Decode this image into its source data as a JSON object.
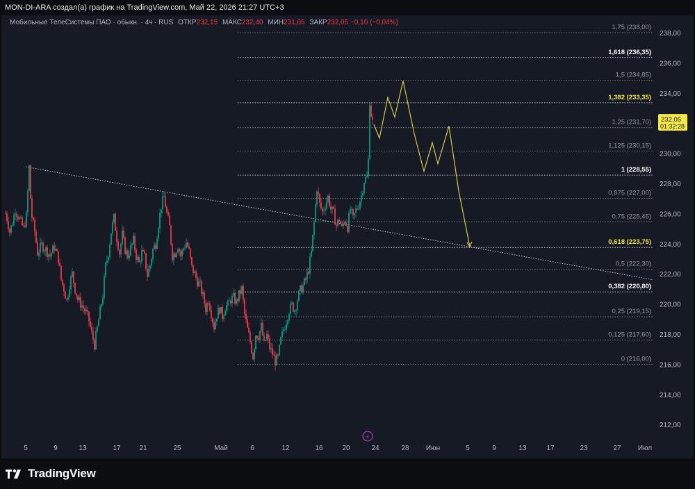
{
  "header": {
    "title": "MON-DI-ARA создал(а) график на TradingView.com, Май 22, 2026 21:27 UTC+3"
  },
  "legend": {
    "symbol": "Мобильные ТелеСистемы ПАО · обыкн. · 4ч · RUS",
    "open_label": "ОТКР",
    "open_value": "232,15",
    "high_label": "МАКС",
    "high_value": "232,40",
    "low_label": "МИН",
    "low_value": "231,65",
    "close_label": "ЗАКР",
    "close_value": "232,05",
    "change": "−0,10 (−0,04%)"
  },
  "price_badge": {
    "price": "232,05",
    "countdown": "01:32:28"
  },
  "brand": {
    "name": "TradingView"
  },
  "colors": {
    "background": "#161a25",
    "up": "#089981",
    "down": "#f23645",
    "fib_highlight": "#f5e94a",
    "projection": "#d6c94a"
  },
  "chart_data": {
    "type": "candlestick",
    "interval": "4h",
    "y_range": [
      211,
      239.5
    ],
    "y_ticks": [
      "238,00",
      "236,00",
      "234,00",
      "232,00",
      "230,00",
      "228,00",
      "226,00",
      "224,00",
      "222,00",
      "220,00",
      "218,00",
      "216,00",
      "214,00",
      "212,00"
    ],
    "y_tick_values": [
      238,
      236,
      234,
      232,
      230,
      228,
      226,
      224,
      222,
      220,
      218,
      216,
      214,
      212
    ],
    "x_labels": [
      "5",
      "9",
      "13",
      "17",
      "21",
      "25",
      "Май",
      "6",
      "12",
      "16",
      "20",
      "24",
      "28",
      "Июн",
      "5",
      "9",
      "13",
      "17",
      "23",
      "27",
      "Июл"
    ],
    "fib_levels": [
      {
        "ratio": "1,75",
        "price": 238.0,
        "label": "1,75 (238,00)",
        "emphasis": "normal"
      },
      {
        "ratio": "1,618",
        "price": 236.35,
        "label": "1,618 (236,35)",
        "emphasis": "white"
      },
      {
        "ratio": "1,5",
        "price": 234.85,
        "label": "1,5 (234,85)",
        "emphasis": "normal"
      },
      {
        "ratio": "1,382",
        "price": 233.35,
        "label": "1,382 (233,35)",
        "emphasis": "yellow"
      },
      {
        "ratio": "1,25",
        "price": 231.7,
        "label": "1,25 (231,70)",
        "emphasis": "normal"
      },
      {
        "ratio": "1,125",
        "price": 230.15,
        "label": "1,125 (230,15)",
        "emphasis": "normal"
      },
      {
        "ratio": "1",
        "price": 228.55,
        "label": "1 (228,55)",
        "emphasis": "white"
      },
      {
        "ratio": "0,875",
        "price": 227.0,
        "label": "0,875 (227,00)",
        "emphasis": "normal"
      },
      {
        "ratio": "0,75",
        "price": 225.45,
        "label": "0,75 (225,45)",
        "emphasis": "normal"
      },
      {
        "ratio": "0,618",
        "price": 223.75,
        "label": "0,618 (223,75)",
        "emphasis": "yellow"
      },
      {
        "ratio": "0,5",
        "price": 222.3,
        "label": "0,5 (222,30)",
        "emphasis": "normal"
      },
      {
        "ratio": "0,382",
        "price": 220.8,
        "label": "0,382 (220,80)",
        "emphasis": "white"
      },
      {
        "ratio": "0,25",
        "price": 219.15,
        "label": "0,25 (219,15)",
        "emphasis": "normal"
      },
      {
        "ratio": "0,125",
        "price": 217.6,
        "label": "0,125 (217,60)",
        "emphasis": "normal"
      },
      {
        "ratio": "0",
        "price": 216.0,
        "label": "0 (216,00)",
        "emphasis": "normal"
      }
    ],
    "price_path": [
      [
        0,
        226.0
      ],
      [
        3,
        225.5
      ],
      [
        6,
        224.8
      ],
      [
        10,
        225.4
      ],
      [
        14,
        226.3
      ],
      [
        20,
        225.6
      ],
      [
        26,
        225.0
      ],
      [
        30,
        225.8
      ],
      [
        34,
        229.1
      ],
      [
        37,
        226.0
      ],
      [
        42,
        224.8
      ],
      [
        46,
        223.4
      ],
      [
        52,
        223.9
      ],
      [
        58,
        223.6
      ],
      [
        64,
        223.2
      ],
      [
        70,
        223.8
      ],
      [
        76,
        223.0
      ],
      [
        80,
        221.6
      ],
      [
        84,
        221.0
      ],
      [
        88,
        220.2
      ],
      [
        92,
        221.3
      ],
      [
        96,
        222.0
      ],
      [
        100,
        221.0
      ],
      [
        104,
        220.3
      ],
      [
        110,
        219.9
      ],
      [
        116,
        219.4
      ],
      [
        120,
        218.9
      ],
      [
        124,
        218.0
      ],
      [
        128,
        217.3
      ],
      [
        132,
        218.4
      ],
      [
        136,
        219.5
      ],
      [
        140,
        220.6
      ],
      [
        144,
        222.5
      ],
      [
        148,
        223.4
      ],
      [
        152,
        224.8
      ],
      [
        156,
        225.7
      ],
      [
        160,
        224.4
      ],
      [
        164,
        223.4
      ],
      [
        168,
        224.6
      ],
      [
        172,
        223.6
      ],
      [
        176,
        223.2
      ],
      [
        180,
        223.7
      ],
      [
        184,
        224.2
      ],
      [
        188,
        223.2
      ],
      [
        192,
        222.7
      ],
      [
        196,
        223.4
      ],
      [
        200,
        223.1
      ],
      [
        204,
        221.9
      ],
      [
        208,
        222.6
      ],
      [
        212,
        223.6
      ],
      [
        216,
        224.0
      ],
      [
        220,
        225.3
      ],
      [
        224,
        226.5
      ],
      [
        228,
        227.1
      ],
      [
        232,
        226.0
      ],
      [
        236,
        225.1
      ],
      [
        240,
        223.2
      ],
      [
        244,
        223.4
      ],
      [
        248,
        223.9
      ],
      [
        252,
        223.2
      ],
      [
        256,
        223.7
      ],
      [
        260,
        224.1
      ],
      [
        264,
        223.5
      ],
      [
        268,
        222.4
      ],
      [
        272,
        222.0
      ],
      [
        276,
        221.5
      ],
      [
        280,
        221.2
      ],
      [
        284,
        220.5
      ],
      [
        288,
        219.7
      ],
      [
        292,
        220.3
      ],
      [
        296,
        219.4
      ],
      [
        300,
        218.5
      ],
      [
        304,
        219.3
      ],
      [
        308,
        219.7
      ],
      [
        312,
        219.2
      ],
      [
        316,
        219.8
      ],
      [
        320,
        219.9
      ],
      [
        324,
        220.3
      ],
      [
        328,
        220.4
      ],
      [
        332,
        220.1
      ],
      [
        336,
        220.6
      ],
      [
        340,
        221.0
      ],
      [
        344,
        219.3
      ],
      [
        348,
        218.3
      ],
      [
        352,
        217.5
      ],
      [
        356,
        216.5
      ],
      [
        360,
        218.0
      ],
      [
        364,
        217.9
      ],
      [
        368,
        218.5
      ],
      [
        372,
        217.3
      ],
      [
        376,
        217.9
      ],
      [
        380,
        217.1
      ],
      [
        384,
        216.7
      ],
      [
        388,
        216.2
      ],
      [
        392,
        216.4
      ],
      [
        396,
        217.6
      ],
      [
        400,
        218.3
      ],
      [
        404,
        218.9
      ],
      [
        408,
        219.6
      ],
      [
        412,
        219.9
      ],
      [
        416,
        219.6
      ],
      [
        420,
        220.3
      ],
      [
        424,
        220.9
      ],
      [
        428,
        221.2
      ],
      [
        432,
        221.6
      ],
      [
        436,
        222.3
      ],
      [
        440,
        223.4
      ],
      [
        444,
        225.4
      ],
      [
        448,
        227.7
      ],
      [
        452,
        226.6
      ],
      [
        456,
        226.1
      ],
      [
        460,
        226.6
      ],
      [
        464,
        227.1
      ],
      [
        468,
        226.3
      ],
      [
        472,
        226.0
      ],
      [
        476,
        225.2
      ],
      [
        480,
        225.6
      ],
      [
        484,
        225.0
      ],
      [
        488,
        225.6
      ],
      [
        492,
        225.1
      ],
      [
        496,
        226.3
      ],
      [
        500,
        225.6
      ],
      [
        504,
        226.2
      ],
      [
        508,
        226.6
      ],
      [
        512,
        227.2
      ],
      [
        516,
        228.2
      ],
      [
        520,
        228.4
      ],
      [
        522,
        229.5
      ],
      [
        524,
        233.5
      ],
      [
        526,
        232.6
      ],
      [
        528,
        232.05
      ]
    ],
    "trendline": {
      "from": {
        "x_label": "5",
        "price": 229.1
      },
      "to_price": 221.6,
      "style": "dotted"
    },
    "projection_path": [
      [
        538,
        231.9
      ],
      [
        546,
        231.0
      ],
      [
        558,
        233.7
      ],
      [
        568,
        232.4
      ],
      [
        580,
        234.8
      ],
      [
        596,
        231.3
      ],
      [
        610,
        228.8
      ],
      [
        622,
        230.7
      ],
      [
        630,
        229.3
      ],
      [
        646,
        231.8
      ],
      [
        660,
        227.5
      ],
      [
        676,
        223.8
      ]
    ]
  }
}
